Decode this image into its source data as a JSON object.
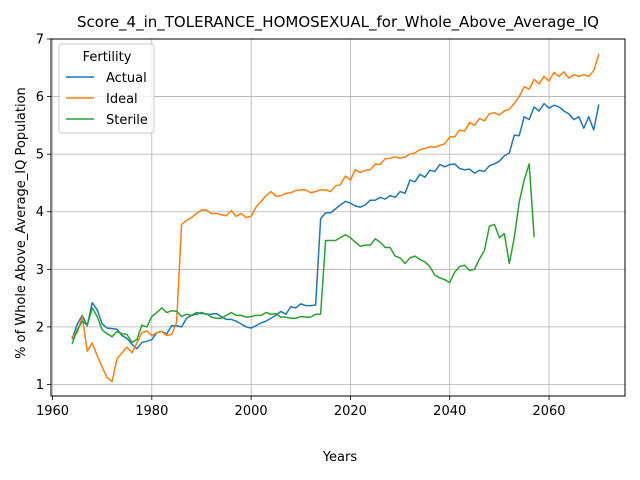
{
  "chart_data": {
    "type": "line",
    "title": "Score_4_in_TOLERANCE_HOMOSEXUAL_for_Whole_Above_Average_IQ",
    "xlabel": "Years",
    "ylabel": "% of Whole Above_Average_IQ Population",
    "xlim": [
      1959.7,
      2075.3
    ],
    "ylim": [
      0.8,
      7.0
    ],
    "xticks": [
      1960,
      1980,
      2000,
      2020,
      2040,
      2060
    ],
    "yticks": [
      1,
      2,
      3,
      4,
      5,
      6,
      7
    ],
    "grid": true,
    "legend": {
      "title": "Fertility",
      "position": "top-left"
    },
    "series": [
      {
        "name": "Actual",
        "color": "#1f77b4",
        "points": [
          [
            1964,
            1.8
          ],
          [
            1965,
            2.05
          ],
          [
            1966,
            2.2
          ],
          [
            1967,
            2.02
          ],
          [
            1968,
            2.42
          ],
          [
            1969,
            2.3
          ],
          [
            1970,
            2.05
          ],
          [
            1971,
            1.98
          ],
          [
            1972,
            1.97
          ],
          [
            1973,
            1.96
          ],
          [
            1974,
            1.85
          ],
          [
            1975,
            1.8
          ],
          [
            1976,
            1.7
          ],
          [
            1977,
            1.62
          ],
          [
            1978,
            1.73
          ],
          [
            1979,
            1.75
          ],
          [
            1980,
            1.78
          ],
          [
            1981,
            1.9
          ],
          [
            1982,
            1.92
          ],
          [
            1983,
            1.88
          ],
          [
            1984,
            2.02
          ],
          [
            1985,
            2.02
          ],
          [
            1986,
            2.0
          ],
          [
            1987,
            2.15
          ],
          [
            1988,
            2.2
          ],
          [
            1989,
            2.22
          ],
          [
            1990,
            2.25
          ],
          [
            1991,
            2.22
          ],
          [
            1992,
            2.22
          ],
          [
            1993,
            2.23
          ],
          [
            1994,
            2.18
          ],
          [
            1995,
            2.13
          ],
          [
            1996,
            2.13
          ],
          [
            1997,
            2.1
          ],
          [
            1998,
            2.05
          ],
          [
            1999,
            2.0
          ],
          [
            2000,
            1.98
          ],
          [
            2001,
            2.02
          ],
          [
            2002,
            2.07
          ],
          [
            2003,
            2.1
          ],
          [
            2004,
            2.15
          ],
          [
            2005,
            2.2
          ],
          [
            2006,
            2.27
          ],
          [
            2007,
            2.22
          ],
          [
            2008,
            2.35
          ],
          [
            2009,
            2.33
          ],
          [
            2010,
            2.4
          ],
          [
            2011,
            2.37
          ],
          [
            2012,
            2.37
          ],
          [
            2013,
            2.38
          ],
          [
            2014,
            3.88
          ],
          [
            2015,
            3.98
          ],
          [
            2016,
            3.98
          ],
          [
            2017,
            4.05
          ],
          [
            2018,
            4.12
          ],
          [
            2019,
            4.18
          ],
          [
            2020,
            4.15
          ],
          [
            2021,
            4.1
          ],
          [
            2022,
            4.08
          ],
          [
            2023,
            4.12
          ],
          [
            2024,
            4.2
          ],
          [
            2025,
            4.2
          ],
          [
            2026,
            4.25
          ],
          [
            2027,
            4.22
          ],
          [
            2028,
            4.28
          ],
          [
            2029,
            4.25
          ],
          [
            2030,
            4.35
          ],
          [
            2031,
            4.32
          ],
          [
            2032,
            4.55
          ],
          [
            2033,
            4.52
          ],
          [
            2034,
            4.65
          ],
          [
            2035,
            4.6
          ],
          [
            2036,
            4.72
          ],
          [
            2037,
            4.7
          ],
          [
            2038,
            4.82
          ],
          [
            2039,
            4.78
          ],
          [
            2040,
            4.82
          ],
          [
            2041,
            4.83
          ],
          [
            2042,
            4.75
          ],
          [
            2043,
            4.73
          ],
          [
            2044,
            4.74
          ],
          [
            2045,
            4.67
          ],
          [
            2046,
            4.72
          ],
          [
            2047,
            4.7
          ],
          [
            2048,
            4.8
          ],
          [
            2049,
            4.83
          ],
          [
            2050,
            4.88
          ],
          [
            2051,
            4.97
          ],
          [
            2052,
            5.02
          ],
          [
            2053,
            5.33
          ],
          [
            2054,
            5.32
          ],
          [
            2055,
            5.65
          ],
          [
            2056,
            5.6
          ],
          [
            2057,
            5.82
          ],
          [
            2058,
            5.75
          ],
          [
            2059,
            5.88
          ],
          [
            2060,
            5.8
          ],
          [
            2061,
            5.85
          ],
          [
            2062,
            5.82
          ],
          [
            2063,
            5.75
          ],
          [
            2064,
            5.7
          ],
          [
            2065,
            5.6
          ],
          [
            2066,
            5.65
          ],
          [
            2067,
            5.45
          ],
          [
            2068,
            5.65
          ],
          [
            2069,
            5.42
          ],
          [
            2070,
            5.85
          ]
        ]
      },
      {
        "name": "Ideal",
        "color": "#ff7f0e",
        "points": [
          [
            1964,
            1.83
          ],
          [
            1965,
            1.9
          ],
          [
            1966,
            2.18
          ],
          [
            1967,
            1.58
          ],
          [
            1968,
            1.72
          ],
          [
            1969,
            1.5
          ],
          [
            1970,
            1.3
          ],
          [
            1971,
            1.12
          ],
          [
            1972,
            1.05
          ],
          [
            1973,
            1.45
          ],
          [
            1974,
            1.55
          ],
          [
            1975,
            1.65
          ],
          [
            1976,
            1.55
          ],
          [
            1977,
            1.72
          ],
          [
            1978,
            1.9
          ],
          [
            1979,
            1.93
          ],
          [
            1980,
            1.85
          ],
          [
            1981,
            1.9
          ],
          [
            1982,
            1.92
          ],
          [
            1983,
            1.85
          ],
          [
            1984,
            1.87
          ],
          [
            1985,
            2.08
          ],
          [
            1986,
            3.78
          ],
          [
            1987,
            3.85
          ],
          [
            1988,
            3.9
          ],
          [
            1989,
            3.97
          ],
          [
            1990,
            4.03
          ],
          [
            1991,
            4.03
          ],
          [
            1992,
            3.97
          ],
          [
            1993,
            3.97
          ],
          [
            1994,
            3.95
          ],
          [
            1995,
            3.93
          ],
          [
            1996,
            4.02
          ],
          [
            1997,
            3.92
          ],
          [
            1998,
            3.97
          ],
          [
            1999,
            3.9
          ],
          [
            2000,
            3.92
          ],
          [
            2001,
            4.08
          ],
          [
            2002,
            4.18
          ],
          [
            2003,
            4.28
          ],
          [
            2004,
            4.35
          ],
          [
            2005,
            4.27
          ],
          [
            2006,
            4.28
          ],
          [
            2007,
            4.32
          ],
          [
            2008,
            4.33
          ],
          [
            2009,
            4.37
          ],
          [
            2010,
            4.38
          ],
          [
            2011,
            4.38
          ],
          [
            2012,
            4.33
          ],
          [
            2013,
            4.35
          ],
          [
            2014,
            4.38
          ],
          [
            2015,
            4.38
          ],
          [
            2016,
            4.35
          ],
          [
            2017,
            4.45
          ],
          [
            2018,
            4.47
          ],
          [
            2019,
            4.62
          ],
          [
            2020,
            4.55
          ],
          [
            2021,
            4.73
          ],
          [
            2022,
            4.68
          ],
          [
            2023,
            4.72
          ],
          [
            2024,
            4.73
          ],
          [
            2025,
            4.83
          ],
          [
            2026,
            4.82
          ],
          [
            2027,
            4.92
          ],
          [
            2028,
            4.93
          ],
          [
            2029,
            4.95
          ],
          [
            2030,
            4.93
          ],
          [
            2031,
            4.95
          ],
          [
            2032,
            5.0
          ],
          [
            2033,
            5.02
          ],
          [
            2034,
            5.08
          ],
          [
            2035,
            5.1
          ],
          [
            2036,
            5.13
          ],
          [
            2037,
            5.12
          ],
          [
            2038,
            5.15
          ],
          [
            2039,
            5.18
          ],
          [
            2040,
            5.3
          ],
          [
            2041,
            5.3
          ],
          [
            2042,
            5.42
          ],
          [
            2043,
            5.4
          ],
          [
            2044,
            5.55
          ],
          [
            2045,
            5.5
          ],
          [
            2046,
            5.62
          ],
          [
            2047,
            5.58
          ],
          [
            2048,
            5.7
          ],
          [
            2049,
            5.72
          ],
          [
            2050,
            5.68
          ],
          [
            2051,
            5.75
          ],
          [
            2052,
            5.78
          ],
          [
            2053,
            5.88
          ],
          [
            2054,
            6.0
          ],
          [
            2055,
            6.17
          ],
          [
            2056,
            6.13
          ],
          [
            2057,
            6.3
          ],
          [
            2058,
            6.22
          ],
          [
            2059,
            6.35
          ],
          [
            2060,
            6.27
          ],
          [
            2061,
            6.42
          ],
          [
            2062,
            6.35
          ],
          [
            2063,
            6.43
          ],
          [
            2064,
            6.32
          ],
          [
            2065,
            6.38
          ],
          [
            2066,
            6.35
          ],
          [
            2067,
            6.38
          ],
          [
            2068,
            6.35
          ],
          [
            2069,
            6.45
          ],
          [
            2070,
            6.73
          ]
        ]
      },
      {
        "name": "Sterile",
        "color": "#2ca02c",
        "points": [
          [
            1964,
            1.72
          ],
          [
            1965,
            1.95
          ],
          [
            1966,
            2.1
          ],
          [
            1967,
            2.03
          ],
          [
            1968,
            2.33
          ],
          [
            1969,
            2.18
          ],
          [
            1970,
            1.95
          ],
          [
            1971,
            1.88
          ],
          [
            1972,
            1.83
          ],
          [
            1973,
            1.92
          ],
          [
            1974,
            1.88
          ],
          [
            1975,
            1.87
          ],
          [
            1976,
            1.73
          ],
          [
            1977,
            1.78
          ],
          [
            1978,
            2.03
          ],
          [
            1979,
            2.0
          ],
          [
            1980,
            2.18
          ],
          [
            1981,
            2.25
          ],
          [
            1982,
            2.33
          ],
          [
            1983,
            2.25
          ],
          [
            1984,
            2.28
          ],
          [
            1985,
            2.27
          ],
          [
            1986,
            2.18
          ],
          [
            1987,
            2.22
          ],
          [
            1988,
            2.2
          ],
          [
            1989,
            2.25
          ],
          [
            1990,
            2.23
          ],
          [
            1991,
            2.23
          ],
          [
            1992,
            2.17
          ],
          [
            1993,
            2.15
          ],
          [
            1994,
            2.15
          ],
          [
            1995,
            2.2
          ],
          [
            1996,
            2.25
          ],
          [
            1997,
            2.2
          ],
          [
            1998,
            2.2
          ],
          [
            1999,
            2.17
          ],
          [
            2000,
            2.18
          ],
          [
            2001,
            2.2
          ],
          [
            2002,
            2.2
          ],
          [
            2003,
            2.25
          ],
          [
            2004,
            2.22
          ],
          [
            2005,
            2.23
          ],
          [
            2006,
            2.17
          ],
          [
            2007,
            2.17
          ],
          [
            2008,
            2.15
          ],
          [
            2009,
            2.15
          ],
          [
            2010,
            2.18
          ],
          [
            2011,
            2.17
          ],
          [
            2012,
            2.17
          ],
          [
            2013,
            2.22
          ],
          [
            2014,
            2.22
          ],
          [
            2015,
            3.5
          ],
          [
            2016,
            3.5
          ],
          [
            2017,
            3.5
          ],
          [
            2018,
            3.55
          ],
          [
            2019,
            3.6
          ],
          [
            2020,
            3.55
          ],
          [
            2021,
            3.47
          ],
          [
            2022,
            3.4
          ],
          [
            2023,
            3.42
          ],
          [
            2024,
            3.42
          ],
          [
            2025,
            3.53
          ],
          [
            2026,
            3.47
          ],
          [
            2027,
            3.38
          ],
          [
            2028,
            3.38
          ],
          [
            2029,
            3.23
          ],
          [
            2030,
            3.2
          ],
          [
            2031,
            3.1
          ],
          [
            2032,
            3.2
          ],
          [
            2033,
            3.23
          ],
          [
            2034,
            3.17
          ],
          [
            2035,
            3.13
          ],
          [
            2036,
            3.05
          ],
          [
            2037,
            2.9
          ],
          [
            2038,
            2.85
          ],
          [
            2039,
            2.82
          ],
          [
            2040,
            2.77
          ],
          [
            2041,
            2.95
          ],
          [
            2042,
            3.05
          ],
          [
            2043,
            3.07
          ],
          [
            2044,
            2.98
          ],
          [
            2045,
            3.0
          ],
          [
            2046,
            3.18
          ],
          [
            2047,
            3.33
          ],
          [
            2048,
            3.75
          ],
          [
            2049,
            3.78
          ],
          [
            2050,
            3.55
          ],
          [
            2051,
            3.62
          ],
          [
            2052,
            3.1
          ],
          [
            2053,
            3.55
          ],
          [
            2054,
            4.17
          ],
          [
            2055,
            4.55
          ],
          [
            2056,
            4.83
          ],
          [
            2057,
            3.57
          ]
        ]
      }
    ]
  }
}
